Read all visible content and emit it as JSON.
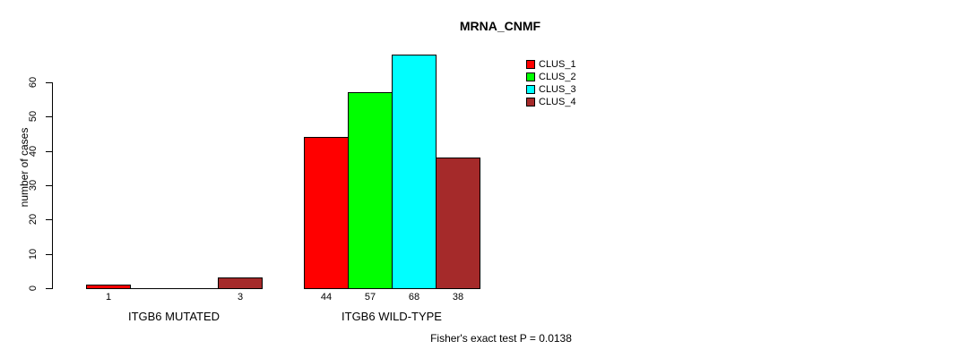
{
  "chart_data": {
    "type": "bar",
    "title": "MRNA_CNMF",
    "ylabel": "number of cases",
    "categories": [
      "ITGB6 MUTATED",
      "ITGB6 WILD-TYPE"
    ],
    "series": [
      {
        "name": "CLUS_1",
        "color": "#FF0000",
        "values": [
          1,
          44
        ]
      },
      {
        "name": "CLUS_2",
        "color": "#00FF00",
        "values": [
          0,
          57
        ]
      },
      {
        "name": "CLUS_3",
        "color": "#00FFFF",
        "values": [
          0,
          68
        ]
      },
      {
        "name": "CLUS_4",
        "color": "#A52A2A",
        "values": [
          3,
          38
        ]
      }
    ],
    "bar_value_labels": [
      "1",
      "",
      "",
      "3",
      "44",
      "57",
      "68",
      "38"
    ],
    "yticks": [
      "0",
      "10",
      "20",
      "30",
      "40",
      "50",
      "60"
    ],
    "ylim": [
      0,
      68
    ],
    "grid": false,
    "legend_position": "top-right",
    "legend": [
      "CLUS_1",
      "CLUS_2",
      "CLUS_3",
      "CLUS_4"
    ],
    "annotation": "Fisher's exact test P = 0.0138"
  },
  "colors": {
    "clus_1": "#FF0000",
    "clus_2": "#00FF00",
    "clus_3": "#00FFFF",
    "clus_4": "#A52A2A",
    "axis": "#000000",
    "background": "#FFFFFF"
  }
}
